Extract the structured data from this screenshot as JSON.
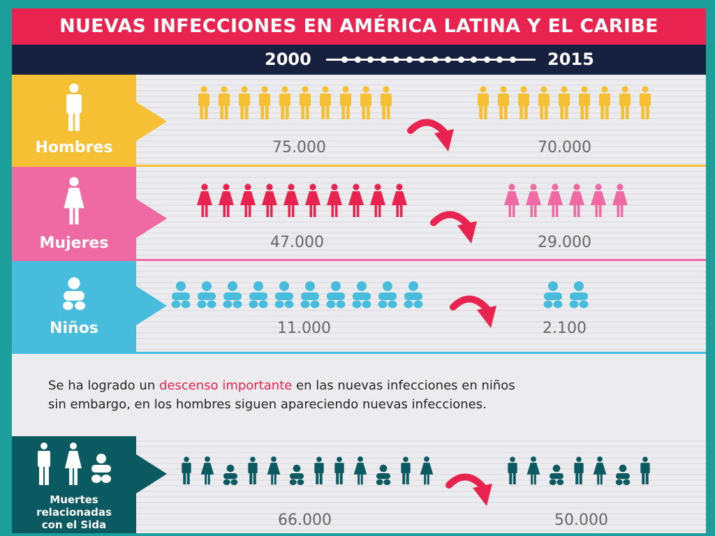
{
  "title": "NUEVAS INFECCIONES EN AMÉRICA LATINA Y EL CARIBE",
  "timeline": {
    "start_year": "2000",
    "end_year": "2015"
  },
  "rows": {
    "hombres": {
      "label": "Hombres",
      "value_2000": "75.000",
      "value_2015": "70.000",
      "icons_2000": 10,
      "icons_2015": 9
    },
    "mujeres": {
      "label": "Mujeres",
      "value_2000": "47.000",
      "value_2015": "29.000",
      "icons_2000": 10,
      "icons_2015": 6
    },
    "ninos": {
      "label": "Niños",
      "value_2000": "11.000",
      "value_2015": "2.100",
      "icons_2000": 10,
      "icons_2015": 2
    },
    "muertes": {
      "label_line1": "Muertes",
      "label_line2": "relacionadas",
      "label_line3": "con el Sida",
      "value_2000": "66.000",
      "value_2015": "50.000",
      "icons_2000": 12,
      "icons_2015": 7
    }
  },
  "message": {
    "part1": "Se ha logrado un ",
    "highlight": "descenso importante",
    "part2": " en las nuevas infecciones en niños",
    "line2": "sin embargo, en los hombres siguen apareciendo nuevas infecciones."
  },
  "colors": {
    "title_bg": "#e8234f",
    "timeline_bg": "#17203f",
    "hombres": "#f5c033",
    "mujeres": "#ef6aa3",
    "mujeres_2000": "#e8234f",
    "ninos": "#48bcdc",
    "muertes": "#0b5a62",
    "arrow": "#e8234f",
    "border": "#1c9e9a"
  },
  "icons": {
    "hombres": "man-icon",
    "mujeres": "woman-icon",
    "ninos": "baby-icon",
    "muertes": "people-icon",
    "trend": "curved-down-arrow-icon"
  }
}
